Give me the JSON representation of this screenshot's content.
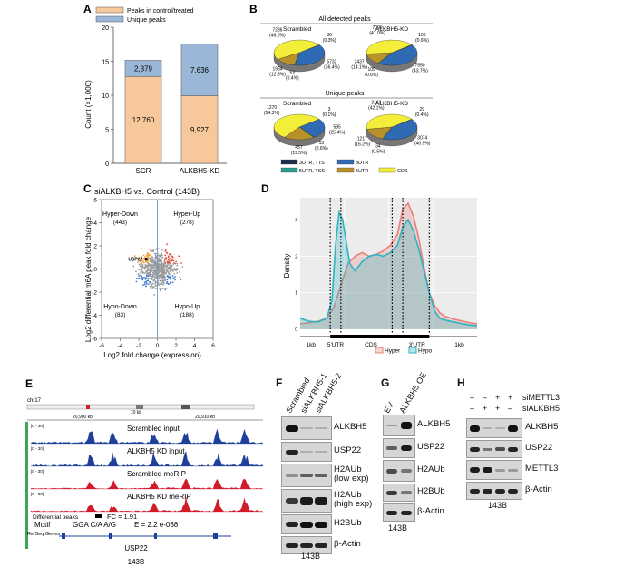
{
  "panel_letters": {
    "a": "A",
    "b": "B",
    "c": "C",
    "d": "D",
    "e": "E",
    "f": "F",
    "g": "G",
    "h": "H"
  },
  "chart_data": [
    {
      "panel": "A",
      "type": "bar",
      "categories": [
        "SCR",
        "ALKBH5-KD"
      ],
      "series": [
        {
          "name": "Peaks in control/treated",
          "values": [
            12760,
            9927
          ],
          "value_labels": [
            "12,760",
            "9,927"
          ],
          "color": "#f8c89d"
        },
        {
          "name": "Unique peaks",
          "values": [
            2379,
            7636
          ],
          "value_labels": [
            "2,379",
            "7,636"
          ],
          "color": "#9ab7d8"
        }
      ],
      "ylabel": "Count (×1,000)",
      "yticks": [
        0,
        5,
        10,
        15,
        20
      ],
      "ylim": [
        0,
        20
      ]
    },
    {
      "panel": "B",
      "type": "pie",
      "groups": [
        {
          "title": "All detected peaks",
          "pies": [
            {
              "name": "Scrambled",
              "slices": [
                {
                  "cat": "3UTR,TTS",
                  "value": 0.3,
                  "label": "36 (0.3%)"
                },
                {
                  "cat": "3UTR",
                  "value": 36.4,
                  "label": "5732 (36.4%)"
                },
                {
                  "cat": "5UTR,TSS",
                  "value": 0.4,
                  "label": "63 (0.4%)"
                },
                {
                  "cat": "5UTR",
                  "value": 12.5,
                  "label": "1964 (12.5%)"
                },
                {
                  "cat": "CDS",
                  "value": 46.0,
                  "label": "7236 (46.0%)"
                }
              ]
            },
            {
              "name": "ALKBH5-KD",
              "slices": [
                {
                  "cat": "3UTR,TTS",
                  "value": 0.6,
                  "label": "106 (0.6%)"
                },
                {
                  "cat": "3UTR",
                  "value": 43.7,
                  "label": "7550 (43.7%)"
                },
                {
                  "cat": "5UTR,TSS",
                  "value": 0.6,
                  "label": "109 (0.6%)"
                },
                {
                  "cat": "5UTR",
                  "value": 14.1,
                  "label": "2437 (14.1%)"
                },
                {
                  "cat": "CDS",
                  "value": 41.0,
                  "label": "7099 (41.0%)"
                }
              ]
            }
          ]
        },
        {
          "title": "Unique peaks",
          "pies": [
            {
              "name": "Scrambled",
              "slices": [
                {
                  "cat": "3UTR,TTS",
                  "value": 0.1,
                  "label": "3 (0.1%)"
                },
                {
                  "cat": "3UTR",
                  "value": 25.4,
                  "label": "595 (25.4%)"
                },
                {
                  "cat": "5UTR,TSS",
                  "value": 0.6,
                  "label": "13 (0.6%)"
                },
                {
                  "cat": "5UTR",
                  "value": 19.5,
                  "label": "457 (19.5%)"
                },
                {
                  "cat": "CDS",
                  "value": 54.3,
                  "label": "1270 (54.3%)"
                }
              ]
            },
            {
              "name": "ALKBH5-KD",
              "slices": [
                {
                  "cat": "3UTR,TTS",
                  "value": 0.4,
                  "label": "29 (0.4%)"
                },
                {
                  "cat": "3UTR",
                  "value": 40.9,
                  "label": "3074 (40.9%)"
                },
                {
                  "cat": "5UTR,TSS",
                  "value": 0.5,
                  "label": "34 (0.5%)"
                },
                {
                  "cat": "5UTR",
                  "value": 16.2,
                  "label": "1217 (16.2%)"
                },
                {
                  "cat": "CDS",
                  "value": 42.1,
                  "label": "3163 (42.1%)"
                }
              ]
            }
          ]
        }
      ],
      "legend": [
        {
          "label": "3UTR, TTS",
          "color": "#1f2d4f"
        },
        {
          "label": "3UTR",
          "color": "#2f6bb5"
        },
        {
          "label": "5UTR, TSS",
          "color": "#2a9d8f"
        },
        {
          "label": "5UTR",
          "color": "#b8912a"
        },
        {
          "label": "CDS",
          "color": "#f2ee3a"
        }
      ]
    },
    {
      "panel": "C",
      "type": "scatter",
      "title": "siALKBH5 vs. Control (143B)",
      "xlabel": "Log2 fold change (expression)",
      "ylabel": "Log2 differential m6A peak fold change",
      "xlim": [
        -6,
        6
      ],
      "ylim": [
        -6,
        6
      ],
      "xticks": [
        -6,
        -4,
        -2,
        0,
        2,
        4,
        6
      ],
      "yticks": [
        -6,
        -4,
        -2,
        0,
        2,
        4,
        6
      ],
      "quadrants": [
        {
          "name": "Hyper-Down",
          "count": "(443)"
        },
        {
          "name": "Hyper-Up",
          "count": "(278)"
        },
        {
          "name": "Hypo-Down",
          "count": "(83)"
        },
        {
          "name": "Hypo-Up",
          "count": "(188)"
        }
      ],
      "highlight": {
        "label": "USP22",
        "x": -1.2,
        "y": 0.85
      }
    },
    {
      "panel": "D",
      "type": "area",
      "ylabel": "Density",
      "yticks": [
        "0",
        "1",
        "2",
        "3"
      ],
      "region_labels": [
        "1kb",
        "5'UTR",
        "CDS",
        "3'UTR",
        "1kb"
      ],
      "series": [
        {
          "name": "Hyper",
          "color": "#e8807a",
          "x": [
            0,
            0.05,
            0.1,
            0.15,
            0.19,
            0.23,
            0.27,
            0.31,
            0.35,
            0.39,
            0.43,
            0.47,
            0.51,
            0.55,
            0.58,
            0.61,
            0.64,
            0.67,
            0.7,
            0.73,
            0.76,
            0.79,
            0.82,
            0.87,
            0.92,
            0.96,
            1.0
          ],
          "y": [
            0.15,
            0.18,
            0.22,
            0.3,
            0.6,
            1.2,
            1.8,
            2.0,
            2.1,
            2.0,
            2.05,
            2.15,
            2.3,
            2.6,
            3.3,
            3.45,
            3.1,
            2.5,
            1.7,
            1.0,
            0.65,
            0.45,
            0.35,
            0.28,
            0.22,
            0.18,
            0.15
          ]
        },
        {
          "name": "Hypo",
          "color": "#2bb5c2",
          "x": [
            0,
            0.05,
            0.1,
            0.15,
            0.18,
            0.2,
            0.22,
            0.24,
            0.26,
            0.28,
            0.31,
            0.35,
            0.39,
            0.43,
            0.47,
            0.51,
            0.55,
            0.58,
            0.61,
            0.64,
            0.67,
            0.7,
            0.73,
            0.76,
            0.79,
            0.82,
            0.87,
            0.92,
            0.96,
            1.0
          ],
          "y": [
            0.3,
            0.22,
            0.2,
            0.3,
            0.8,
            2.3,
            3.2,
            3.0,
            2.4,
            1.8,
            1.6,
            1.85,
            2.0,
            2.05,
            2.0,
            2.1,
            2.3,
            2.8,
            3.0,
            2.7,
            2.2,
            1.6,
            1.0,
            0.5,
            0.3,
            0.25,
            0.2,
            0.15,
            0.12,
            0.1
          ]
        }
      ]
    }
  ],
  "panel_e": {
    "chrom": "chr17",
    "ruler_left": "20,900 kb",
    "ruler_right": "20,910 kb",
    "scale_label": "10 kb",
    "tracks": [
      {
        "label": "Scrambled input",
        "range": "[0 - 30]",
        "color": "#1f3f9a"
      },
      {
        "label": "ALKBH5 KD input",
        "range": "[0 - 30]",
        "color": "#1f3f9a"
      },
      {
        "label": "Scrambled meRIP",
        "range": "[0 - 30]",
        "color": "#d11a2a"
      },
      {
        "label": "ALKBH5 KD meRIP",
        "range": "[0 - 30]",
        "color": "#d11a2a"
      }
    ],
    "diff_peaks_label": "Differential peaks",
    "fc_label": "FC = 1.91",
    "motif_label": "Motif",
    "motif_seq": "GGA C/A A/G",
    "evalue": "E = 2.2 e-068",
    "refseq_label": "RefSeq Genes",
    "gene_name": "USP22",
    "cell_line": "143B"
  },
  "panel_f": {
    "lanes": [
      "Scrambled",
      "siALKBH5-1",
      "siALKBH5-2"
    ],
    "rows": [
      "ALKBH5",
      "USP22",
      "H2AUb\n(low exp)",
      "H2AUb\n(high exp)",
      "H2BUb",
      "β-Actin"
    ],
    "cell_line": "143B"
  },
  "panel_g": {
    "lanes": [
      "EV",
      "ALKBH5 OE"
    ],
    "rows": [
      "ALKBH5",
      "USP22",
      "H2AUb",
      "H2BUb",
      "β-Actin"
    ],
    "cell_line": "143B"
  },
  "panel_h": {
    "row_labels": [
      "siMETTL3",
      "siALKBH5"
    ],
    "signs": [
      [
        "–",
        "–",
        "+",
        "+"
      ],
      [
        "–",
        "+",
        "+",
        "–"
      ]
    ],
    "rows": [
      "ALKBH5",
      "USP22",
      "METTL3",
      "β-Actin"
    ],
    "cell_line": "143B"
  }
}
